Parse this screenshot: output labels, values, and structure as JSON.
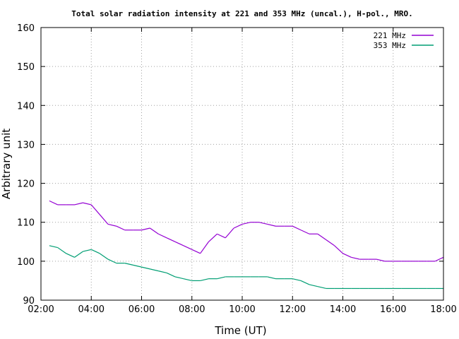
{
  "chart_data": {
    "type": "line",
    "title": "Total solar radiation intensity at 221 and 353 MHz (uncal.), H-pol., MRO.",
    "xlabel": "Time (UT)",
    "ylabel": "Arbitrary unit",
    "xlim": [
      "02:00",
      "18:00"
    ],
    "ylim": [
      90,
      160
    ],
    "x_ticks": [
      "02:00",
      "04:00",
      "06:00",
      "08:00",
      "10:00",
      "12:00",
      "14:00",
      "16:00",
      "18:00"
    ],
    "y_ticks": [
      90,
      100,
      110,
      120,
      130,
      140,
      150,
      160
    ],
    "grid": true,
    "legend_position": "top-right",
    "x": [
      "02:20",
      "02:40",
      "03:00",
      "03:20",
      "03:40",
      "04:00",
      "04:20",
      "04:40",
      "05:00",
      "05:20",
      "05:40",
      "06:00",
      "06:20",
      "06:40",
      "07:00",
      "07:20",
      "07:40",
      "08:00",
      "08:20",
      "08:40",
      "09:00",
      "09:20",
      "09:40",
      "10:00",
      "10:20",
      "10:40",
      "11:00",
      "11:20",
      "11:40",
      "12:00",
      "12:20",
      "12:40",
      "13:00",
      "13:20",
      "13:40",
      "14:00",
      "14:20",
      "14:40",
      "15:00",
      "15:20",
      "15:40",
      "16:00",
      "16:20",
      "16:40",
      "17:00",
      "17:20",
      "17:40",
      "18:00"
    ],
    "series": [
      {
        "name": "221 MHz",
        "color": "#9400d3",
        "values": [
          115.5,
          114.5,
          114.5,
          114.5,
          115,
          114.5,
          112,
          109.5,
          109,
          108,
          108,
          108,
          108.5,
          107,
          106,
          105,
          104,
          103,
          102,
          105,
          107,
          106,
          108.5,
          109.5,
          110,
          110,
          109.5,
          109,
          109,
          109,
          108,
          107,
          107,
          105.5,
          104,
          102,
          101,
          100.5,
          100.5,
          100.5,
          100,
          100,
          100,
          100,
          100,
          100,
          100,
          101
        ]
      },
      {
        "name": "353 MHz",
        "color": "#009e73",
        "values": [
          104,
          103.5,
          102,
          101,
          102.5,
          103,
          102,
          100.5,
          99.5,
          99.5,
          99,
          98.5,
          98,
          97.5,
          97,
          96,
          95.5,
          95,
          95,
          95.5,
          95.5,
          96,
          96,
          96,
          96,
          96,
          96,
          95.5,
          95.5,
          95.5,
          95,
          94,
          93.5,
          93,
          93,
          93,
          93,
          93,
          93,
          93,
          93,
          93,
          93,
          93,
          93,
          93,
          93,
          93
        ]
      }
    ]
  }
}
